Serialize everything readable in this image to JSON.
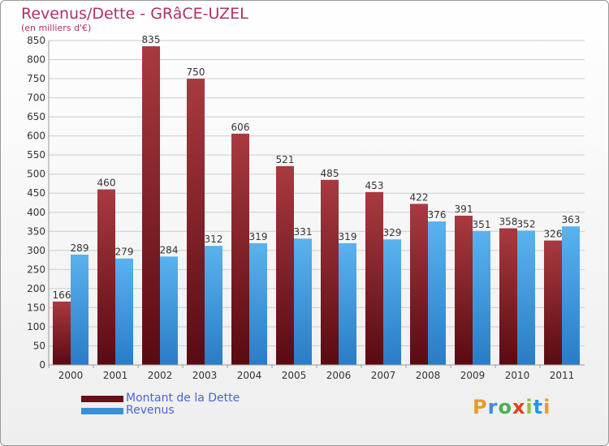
{
  "title": "Revenus/Dette - GRâCE-UZEL",
  "subtitle": "(en milliers d'€)",
  "colors": {
    "dette": "#6b1018",
    "revenus": "#3a8fd6",
    "title": "#b0306a",
    "legend_text": "#4d62d6"
  },
  "legend": {
    "dette_label": "Montant de la Dette",
    "revenus_label": "Revenus"
  },
  "logo": {
    "text": "Proxiti",
    "letters": [
      "P",
      "r",
      "o",
      "x",
      "i",
      "t",
      "i"
    ],
    "colors": [
      "#e89a2c",
      "#3a8fd6",
      "#4caf50",
      "#e04020",
      "#8bc34a",
      "#2196f3",
      "#e89a2c"
    ]
  },
  "chart_data": {
    "type": "bar",
    "title": "Revenus/Dette - GRâCE-UZEL",
    "ylabel": "(en milliers d'€)",
    "xlabel": "",
    "ylim": [
      0,
      850
    ],
    "ytick_step": 50,
    "grid": true,
    "legend_position": "bottom-left",
    "categories": [
      "2000",
      "2001",
      "2002",
      "2003",
      "2004",
      "2005",
      "2006",
      "2007",
      "2008",
      "2009",
      "2010",
      "2011"
    ],
    "series": [
      {
        "name": "Montant de la Dette",
        "values": [
          166,
          460,
          835,
          750,
          606,
          521,
          485,
          453,
          422,
          391,
          358,
          326
        ]
      },
      {
        "name": "Revenus",
        "values": [
          289,
          279,
          284,
          312,
          319,
          331,
          319,
          329,
          376,
          351,
          352,
          363
        ]
      }
    ]
  }
}
